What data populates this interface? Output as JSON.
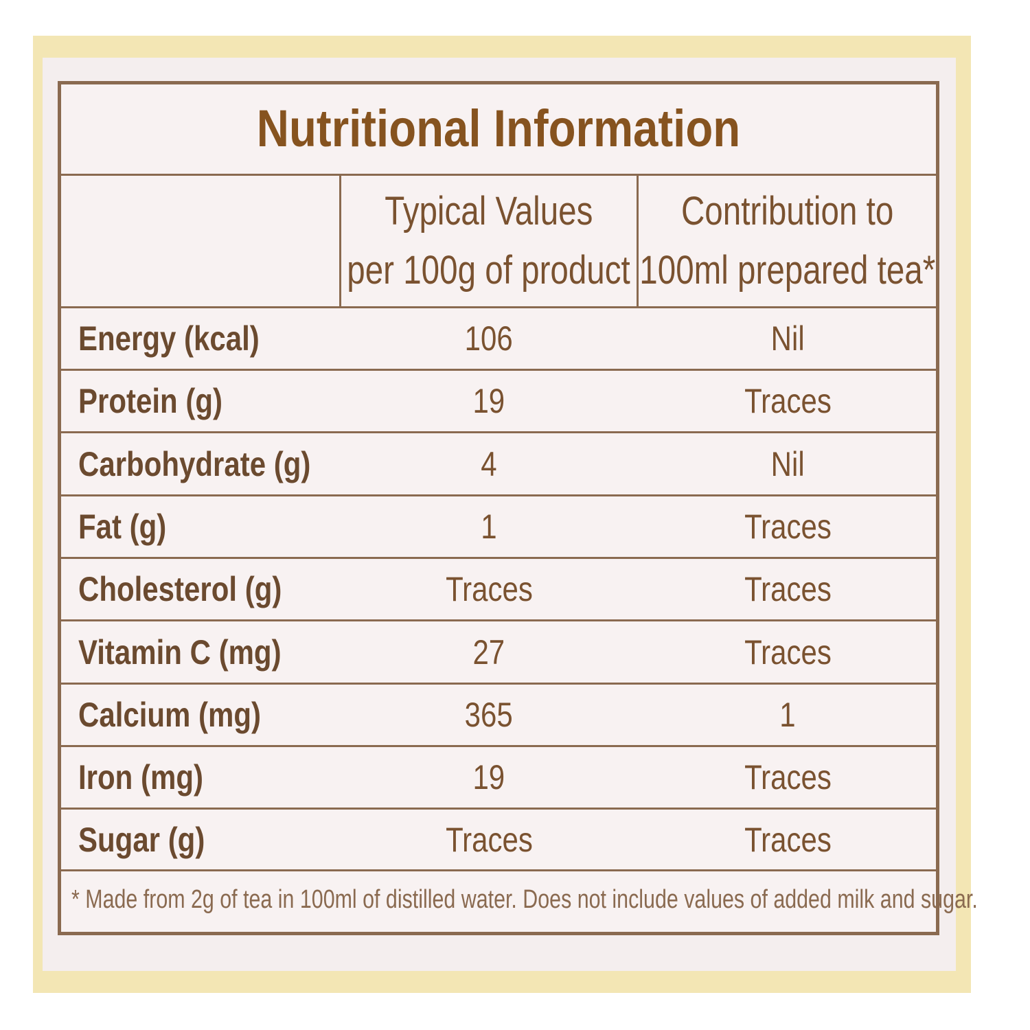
{
  "label": {
    "title": "Nutritional Information",
    "header": {
      "col2_line1": "Typical Values",
      "col2_line2": "per 100g of product",
      "col3_line1": "Contribution to",
      "col3_line2": "100ml prepared tea*"
    },
    "rows": [
      {
        "nutrient": "Energy (kcal)",
        "per_100g": "106",
        "per_100ml": "Nil"
      },
      {
        "nutrient": "Protein (g)",
        "per_100g": "19",
        "per_100ml": "Traces"
      },
      {
        "nutrient": "Carbohydrate (g)",
        "per_100g": "4",
        "per_100ml": "Nil"
      },
      {
        "nutrient": "Fat (g)",
        "per_100g": "1",
        "per_100ml": "Traces"
      },
      {
        "nutrient": "Cholesterol (g)",
        "per_100g": "Traces",
        "per_100ml": "Traces"
      },
      {
        "nutrient": "Vitamin C (mg)",
        "per_100g": "27",
        "per_100ml": "Traces"
      },
      {
        "nutrient": "Calcium (mg)",
        "per_100g": "365",
        "per_100ml": "1"
      },
      {
        "nutrient": "Iron (mg)",
        "per_100g": "19",
        "per_100ml": "Traces"
      },
      {
        "nutrient": "Sugar (g)",
        "per_100g": "Traces",
        "per_100ml": "Traces"
      }
    ],
    "footnote": "* Made from 2g of tea in 100ml of distilled water. Does not include values of added milk and sugar."
  },
  "colors": {
    "border": "#8a6a50",
    "title": "#86531f",
    "text": "#7a5230",
    "outer_band": "#f3e6b4",
    "panel_bg": "#f8f2f2"
  }
}
